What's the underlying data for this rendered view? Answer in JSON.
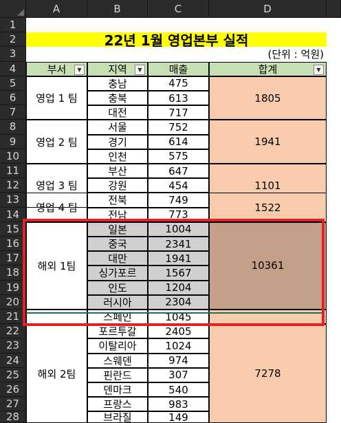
{
  "columns": [
    "A",
    "B",
    "C",
    "D"
  ],
  "rows": [
    "1",
    "2",
    "3",
    "4",
    "5",
    "6",
    "7",
    "8",
    "9",
    "10",
    "11",
    "12",
    "13",
    "14",
    "15",
    "16",
    "17",
    "18",
    "19",
    "20",
    "21",
    "22",
    "23",
    "24",
    "25",
    "26",
    "27",
    "28"
  ],
  "title": "22년 1월 영업본부 실적",
  "unit": "(단위 : 억원)",
  "headers": {
    "dept": "부서",
    "region": "지역",
    "sales": "매출",
    "total": "합계"
  },
  "filter_icon": "filter-dropdown-icon",
  "groups": [
    {
      "dept": "영업 1 팀",
      "total": "1805"
    },
    {
      "dept": "영업 2 팀",
      "total": "1941"
    },
    {
      "dept": "영업 3 팀",
      "total": "1101"
    },
    {
      "dept": "영업 4 팀",
      "total": "1522"
    },
    {
      "dept": "해외 1팀",
      "total": "10361"
    },
    {
      "dept": "해외 2팀",
      "total": "7278"
    }
  ],
  "data_rows": [
    {
      "region": "충남",
      "sales": "475"
    },
    {
      "region": "충북",
      "sales": "613"
    },
    {
      "region": "대전",
      "sales": "717"
    },
    {
      "region": "서울",
      "sales": "752"
    },
    {
      "region": "경기",
      "sales": "614"
    },
    {
      "region": "인천",
      "sales": "575"
    },
    {
      "region": "부산",
      "sales": "647"
    },
    {
      "region": "강원",
      "sales": "454"
    },
    {
      "region": "전북",
      "sales": "749"
    },
    {
      "region": "전남",
      "sales": "773"
    },
    {
      "region": "일본",
      "sales": "1004"
    },
    {
      "region": "중국",
      "sales": "2341"
    },
    {
      "region": "대만",
      "sales": "1941"
    },
    {
      "region": "싱가포르",
      "sales": "1567"
    },
    {
      "region": "인도",
      "sales": "1204"
    },
    {
      "region": "러시아",
      "sales": "2304"
    },
    {
      "region": "스페인",
      "sales": "1045"
    },
    {
      "region": "포르투갈",
      "sales": "2405"
    },
    {
      "region": "이탈리아",
      "sales": "1024"
    },
    {
      "region": "스웨덴",
      "sales": "974"
    },
    {
      "region": "핀란드",
      "sales": "307"
    },
    {
      "region": "덴마크",
      "sales": "540"
    },
    {
      "region": "프랑스",
      "sales": "983"
    },
    {
      "region": "브라질",
      "sales": "149"
    }
  ],
  "highlight_color": "#e02424",
  "colors": {
    "title_bg": "#ffff00",
    "header_bg": "#c6e0b4",
    "total_bg": "#f8cbad",
    "selected_bg": "#d0d0d0",
    "selected_total_bg": "#c4a088"
  }
}
